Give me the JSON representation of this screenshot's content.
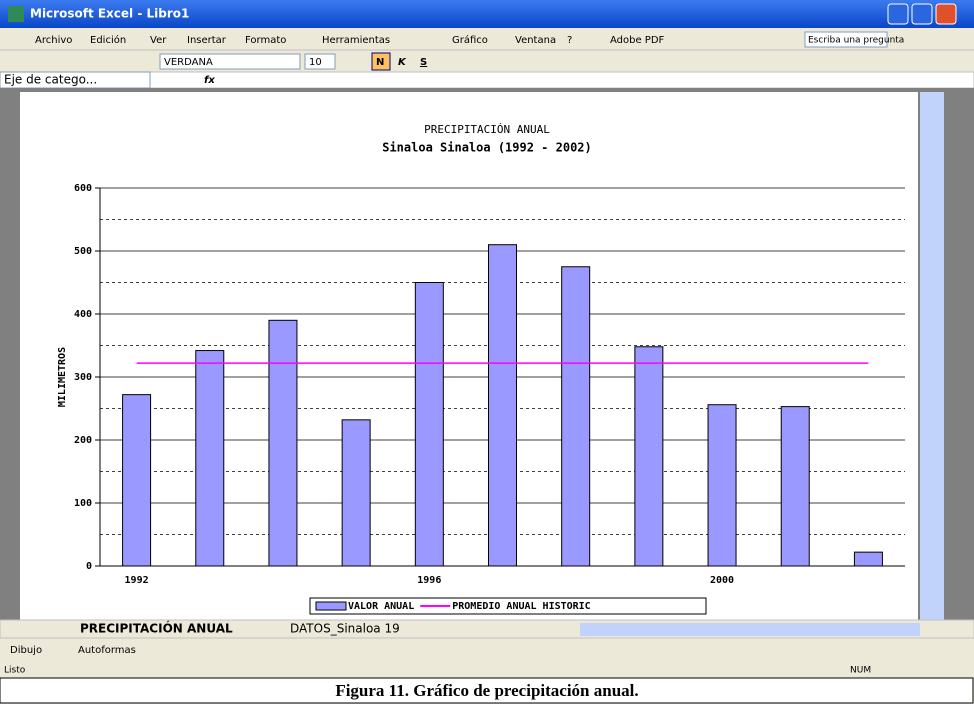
{
  "window": {
    "title": "Microsoft Excel - Libro1"
  },
  "menu": [
    "Archivo",
    "Edición",
    "Ver",
    "Insertar",
    "Formato",
    "Herramientas",
    "Gráfico",
    "Ventana",
    "?",
    "Adobe PDF"
  ],
  "help_box": "Escriba una pregunta",
  "toolbar": {
    "font": "VERDANA",
    "size": "10",
    "bold": "N",
    "italic": "K",
    "underline": "S"
  },
  "formula_bar": {
    "name_box": "Eje de catego...",
    "fx": "fx"
  },
  "sheet_tabs": [
    "PRECIPITACIÓN ANUAL",
    "DATOS_Sinaloa 19"
  ],
  "drawing_toolbar": [
    "Dibujo",
    "Autoformas"
  ],
  "status_bar": {
    "left": "Listo",
    "right": "NUM"
  },
  "caption": "Figura 11. Gráfico de precipitación anual.",
  "chart_data": {
    "type": "bar",
    "title": "PRECIPITACIÓN ANUAL",
    "subtitle": "Sinaloa Sinaloa (1992 - 2002)",
    "y_label": "MILIMETROS",
    "categories": [
      "1992",
      null,
      null,
      null,
      "1996",
      null,
      null,
      null,
      "2000",
      null,
      null
    ],
    "series": [
      {
        "name": "VALOR ANUAL",
        "color": "#9999ff",
        "type": "bar",
        "values": [
          272,
          342,
          390,
          232,
          450,
          510,
          475,
          348,
          256,
          253,
          22
        ]
      },
      {
        "name": "PROMEDIO ANUAL HISTORIC",
        "color": "#ff00ff",
        "type": "line",
        "values": [
          322,
          322,
          322,
          322,
          322,
          322,
          322,
          322,
          322,
          322,
          322
        ]
      }
    ],
    "ylim": [
      0,
      600
    ],
    "yticks": [
      0,
      100,
      200,
      300,
      400,
      500,
      600
    ],
    "minor_yticks": [
      50,
      150,
      250,
      350,
      450,
      550
    ],
    "grid": true,
    "legend": "bottom"
  }
}
